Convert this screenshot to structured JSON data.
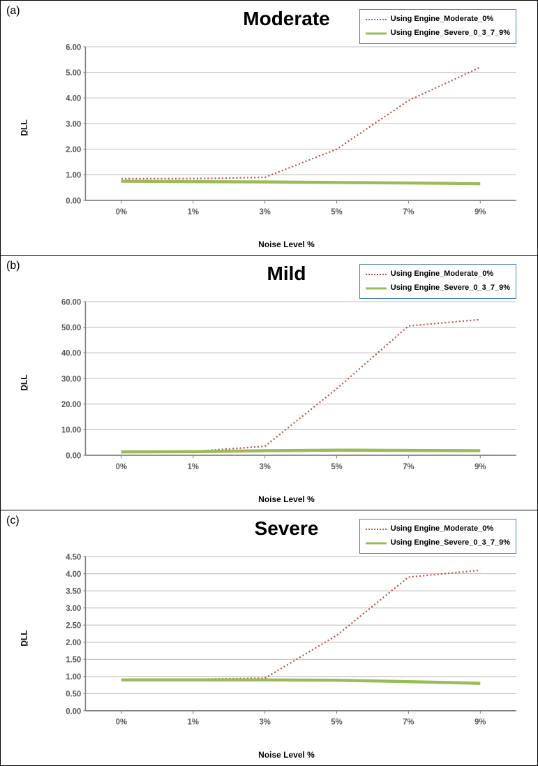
{
  "legend": {
    "series1_label": "Using Engine_Moderate_0%",
    "series2_label": "Using Engine_Severe_0_3_7_9%",
    "series1_color": "#c0504d",
    "series2_color": "#9bbb59",
    "border_color": "#4a7ebb"
  },
  "common": {
    "x_categories": [
      "0%",
      "1%",
      "3%",
      "5%",
      "7%",
      "9%"
    ],
    "x_label": "Noise Level %",
    "y_label": "D̲LL",
    "grid_color": "#bfbfbf",
    "axis_color": "#808080",
    "tick_text_color": "#595959",
    "background": "#ffffff",
    "title_fontsize": 28,
    "label_fontsize": 12,
    "tick_fontsize": 11
  },
  "panels": [
    {
      "id": "a",
      "panel_label": "(a)",
      "title": "Moderate",
      "ylim": [
        0,
        6
      ],
      "ytick_step": 1,
      "yticks_labels": [
        "0.00",
        "1.00",
        "2.00",
        "3.00",
        "4.00",
        "5.00",
        "6.00"
      ],
      "series1": [
        0.85,
        0.85,
        0.9,
        2.0,
        3.9,
        5.2
      ],
      "series2": [
        0.75,
        0.73,
        0.72,
        0.7,
        0.68,
        0.65
      ]
    },
    {
      "id": "b",
      "panel_label": "(b)",
      "title": "Mild",
      "ylim": [
        0,
        60
      ],
      "ytick_step": 10,
      "yticks_labels": [
        "0.00",
        "10.00",
        "20.00",
        "30.00",
        "40.00",
        "50.00",
        "60.00"
      ],
      "series1": [
        1.5,
        1.5,
        3.5,
        26.0,
        50.5,
        53.0
      ],
      "series2": [
        1.3,
        1.4,
        1.8,
        2.0,
        1.9,
        1.8
      ]
    },
    {
      "id": "c",
      "panel_label": "(c)",
      "title": "Severe",
      "ylim": [
        0,
        4.5
      ],
      "ytick_step": 0.5,
      "yticks_labels": [
        "0.00",
        "0.50",
        "1.00",
        "1.50",
        "2.00",
        "2.50",
        "3.00",
        "3.50",
        "4.00",
        "4.50"
      ],
      "series1": [
        0.92,
        0.92,
        0.95,
        2.2,
        3.9,
        4.1
      ],
      "series2": [
        0.9,
        0.9,
        0.9,
        0.89,
        0.85,
        0.8
      ]
    }
  ]
}
